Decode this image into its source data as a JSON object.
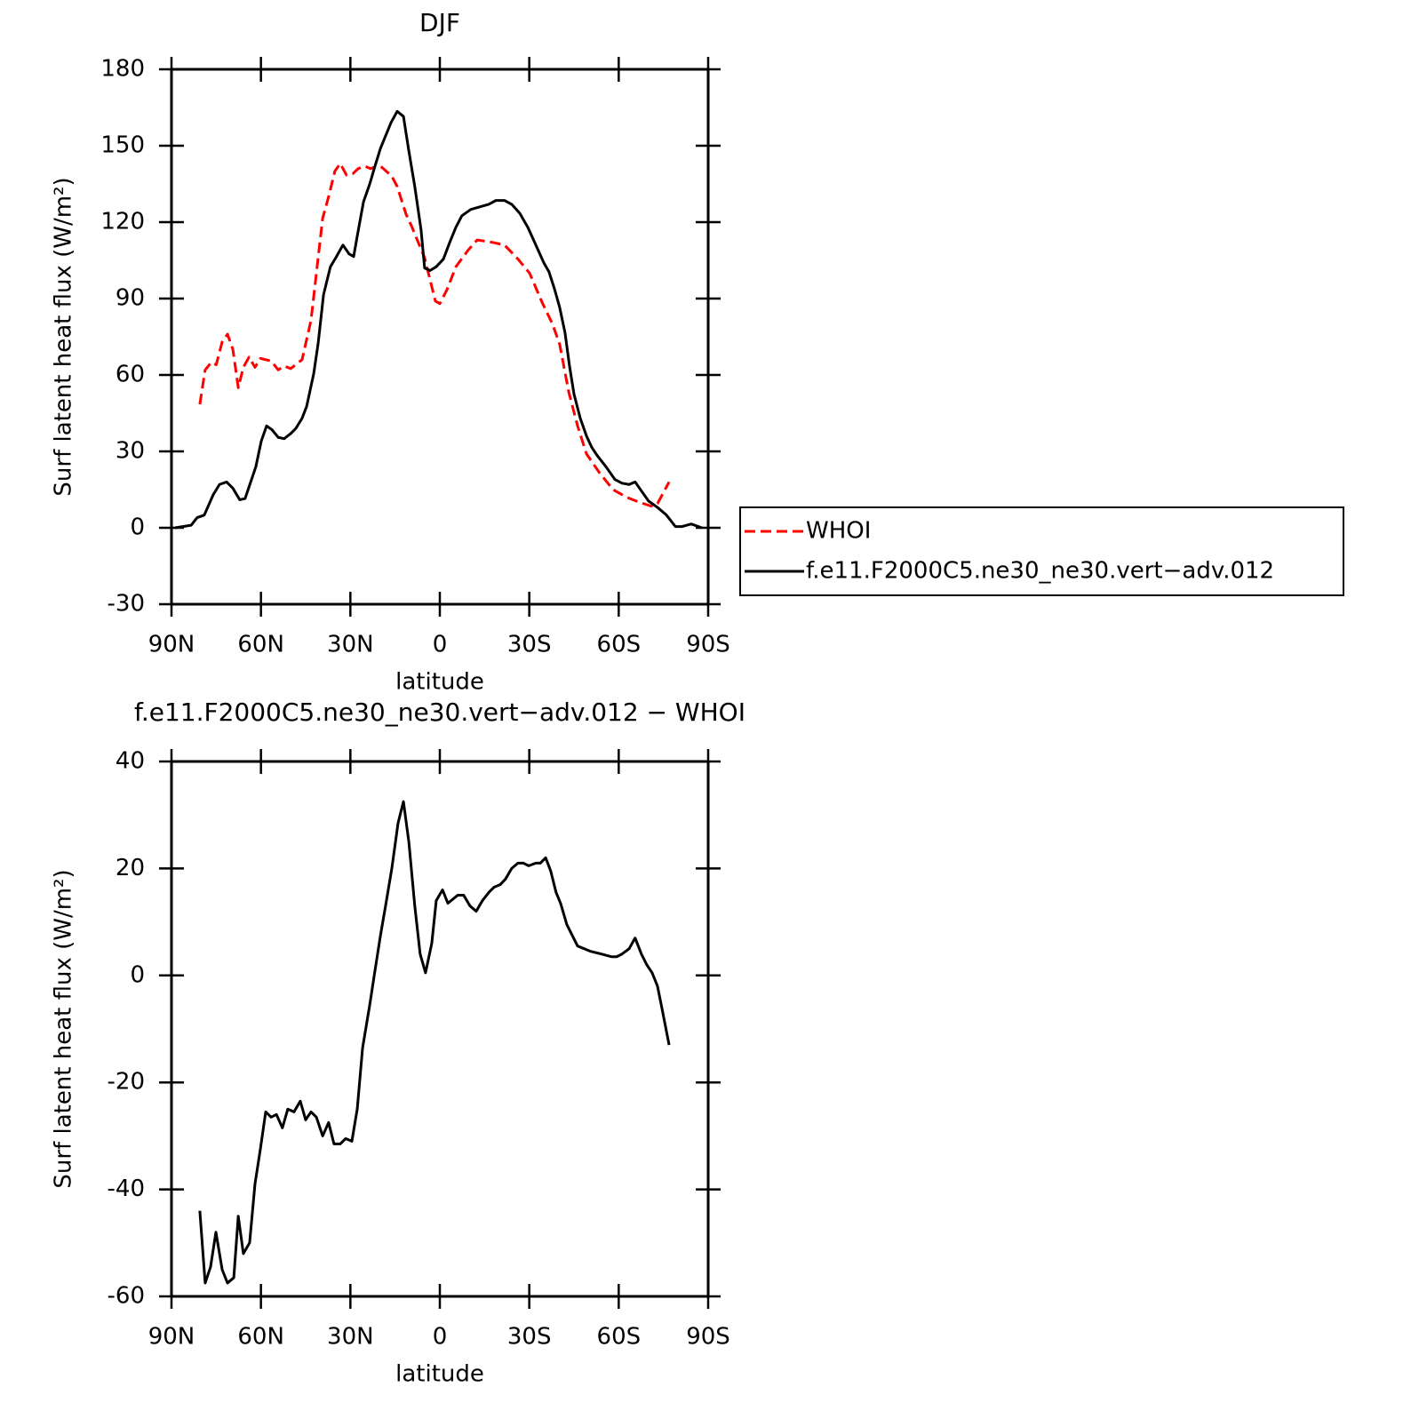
{
  "chart_data": [
    {
      "type": "line",
      "title": "DJF",
      "xlabel": "latitude",
      "ylabel": "Surf latent heat flux (W/m²)",
      "xlim": [
        90,
        -90
      ],
      "xticks": [
        {
          "value": 90,
          "label": "90N"
        },
        {
          "value": 60,
          "label": "60N"
        },
        {
          "value": 30,
          "label": "30N"
        },
        0,
        {
          "value": -30,
          "label": "30S"
        },
        {
          "value": -60,
          "label": "60S"
        },
        {
          "value": -90,
          "label": "90S"
        }
      ],
      "ylim": [
        -30,
        180
      ],
      "yticks": [
        -30,
        0,
        30,
        60,
        90,
        120,
        150,
        180
      ],
      "legend": "right",
      "series": [
        {
          "name": "WHOI",
          "color": "#ff0000",
          "line_style": "dashed",
          "x": [
            80.5,
            78.7,
            76.6,
            75,
            73,
            71.2,
            69.4,
            67.6,
            65.9,
            64,
            62,
            60.2,
            56.6,
            54.2,
            52.2,
            50,
            46.2,
            43.2,
            39.3,
            37.3,
            35.2,
            33.4,
            31.3,
            29.2,
            27.4,
            25.3,
            23.2,
            21.2,
            19.4,
            16.1,
            14.3,
            11.3,
            9.5,
            5.1,
            1.5,
            0,
            -2.4,
            -5.4,
            -9.5,
            -12.5,
            -17.9,
            -21.7,
            -26.2,
            -30.1,
            -34.3,
            -37.8,
            -40.2,
            -43.2,
            -46.2,
            -49.2,
            -53.6,
            -58.1,
            -62.6,
            -67,
            -70.9,
            -73,
            -76.9
          ],
          "values": [
            48.5,
            62,
            65,
            64,
            73,
            76,
            70,
            55,
            63,
            67,
            63,
            66.5,
            65.5,
            62,
            63.5,
            62.5,
            66,
            81.5,
            121.5,
            130,
            140,
            143,
            138.5,
            139,
            141,
            142,
            141,
            142,
            141.5,
            138,
            134,
            123,
            118.5,
            106,
            89,
            88,
            93.5,
            102.5,
            109,
            113,
            112,
            111,
            105.5,
            100,
            88.5,
            80,
            72,
            53.5,
            40,
            29,
            21.5,
            15,
            12,
            10,
            8.5,
            9.5,
            18
          ]
        },
        {
          "name": "f.e11.F2000C5.ne30_ne30.vert−adv.012",
          "color": "#000000",
          "line_style": "solid",
          "x": [
            88.8,
            83.4,
            81.4,
            79,
            76,
            73.9,
            71.5,
            69.4,
            67.1,
            65.3,
            61.7,
            59.9,
            58.1,
            56.3,
            54.2,
            52.2,
            50,
            48.3,
            46.2,
            44.7,
            42.3,
            40.8,
            39,
            36.7,
            34.9,
            32.5,
            30.4,
            28.9,
            27.7,
            25.6,
            23.5,
            22,
            19.9,
            18.5,
            16.4,
            14.3,
            12.2,
            10.4,
            8.4,
            6.3,
            5.1,
            3.3,
            1.2,
            -1.2,
            -3.3,
            -5.4,
            -7.4,
            -10.4,
            -13.4,
            -16.4,
            -18.8,
            -21.7,
            -24.1,
            -26.8,
            -29.5,
            -32.2,
            -34.9,
            -36.6,
            -38.4,
            -40.2,
            -42,
            -43.5,
            -45,
            -47.1,
            -49.2,
            -51,
            -52.7,
            -55.7,
            -58.7,
            -61.1,
            -63.5,
            -65.5,
            -67.6,
            -70,
            -73,
            -76,
            -79,
            -81.3,
            -84.3,
            -87.9
          ],
          "values": [
            0,
            1,
            4,
            5,
            13,
            17,
            18,
            15.5,
            11,
            11.5,
            24,
            34,
            40,
            38.5,
            35.5,
            35,
            37,
            39,
            43,
            47.5,
            60.5,
            72.5,
            91.5,
            102.5,
            106,
            111,
            107.5,
            106.5,
            114.5,
            128,
            135,
            141,
            149,
            153,
            159,
            163.5,
            161.5,
            148,
            134,
            117,
            102,
            101,
            102.5,
            105.5,
            112,
            118,
            122.5,
            125,
            126,
            127,
            128.5,
            128.5,
            127,
            123.5,
            118,
            111,
            104,
            100.5,
            94,
            86.5,
            76.5,
            63.5,
            52.5,
            43,
            36,
            31.5,
            28.5,
            24,
            19,
            17.5,
            17,
            18,
            14.5,
            10.5,
            8,
            5,
            0.5,
            0.5,
            1.5,
            0
          ]
        }
      ]
    },
    {
      "type": "line",
      "title": "f.e11.F2000C5.ne30_ne30.vert−adv.012 − WHOI",
      "xlabel": "latitude",
      "ylabel": "Surf latent heat flux (W/m²)",
      "xlim": [
        90,
        -90
      ],
      "xticks": [
        {
          "value": 90,
          "label": "90N"
        },
        {
          "value": 60,
          "label": "60N"
        },
        {
          "value": 30,
          "label": "30N"
        },
        0,
        {
          "value": -30,
          "label": "30S"
        },
        {
          "value": -60,
          "label": "60S"
        },
        {
          "value": -90,
          "label": "90S"
        }
      ],
      "ylim": [
        -60,
        40
      ],
      "yticks": [
        -60,
        -40,
        -20,
        0,
        20,
        40
      ],
      "series": [
        {
          "color": "#000000",
          "line_style": "solid",
          "x": [
            80.5,
            78.7,
            76.9,
            75.1,
            73,
            71.2,
            69.1,
            67.6,
            65.9,
            63.8,
            62,
            60.2,
            58.4,
            56.6,
            54.8,
            52.8,
            51,
            48.9,
            46.8,
            45,
            43.2,
            41.4,
            39.3,
            37.3,
            35.5,
            33.4,
            31.6,
            29.5,
            27.7,
            25.9,
            23.5,
            22,
            19.9,
            18.2,
            16.1,
            14,
            12.2,
            10.4,
            8.4,
            6.6,
            4.8,
            2.7,
            1.2,
            -0.9,
            -2.7,
            -6,
            -8,
            -10.1,
            -12.2,
            -14.3,
            -16.4,
            -18.2,
            -20.3,
            -22,
            -24.1,
            -26.2,
            -28,
            -29.8,
            -32.2,
            -33.7,
            -35.5,
            -37.2,
            -39,
            -40.5,
            -42.6,
            -46.2,
            -50.6,
            -54.2,
            -57.5,
            -59.3,
            -61.1,
            -63.5,
            -65.5,
            -67.6,
            -69.4,
            -71.2,
            -73,
            -74.8,
            -76.9
          ],
          "values": [
            -44,
            -57.5,
            -54.5,
            -48,
            -55,
            -57.5,
            -56.5,
            -45,
            -52,
            -50,
            -39,
            -32.5,
            -25.5,
            -26.5,
            -26,
            -28.5,
            -25,
            -25.5,
            -23.5,
            -27,
            -25.5,
            -26.5,
            -30,
            -27.5,
            -31.5,
            -31.5,
            -30.5,
            -31,
            -25,
            -13.5,
            -5.5,
            0,
            7.5,
            13,
            20,
            28.5,
            32.5,
            25,
            13,
            4,
            0.5,
            6,
            14,
            16,
            13.5,
            15,
            15,
            13,
            12,
            14,
            15.5,
            16.5,
            17,
            18,
            20,
            21,
            21,
            20.5,
            21,
            21,
            22,
            19.5,
            15.5,
            13.5,
            9.5,
            5.5,
            4.5,
            4,
            3.5,
            3.5,
            4,
            5,
            7,
            4,
            2,
            0.5,
            -2,
            -7,
            -13
          ]
        }
      ]
    }
  ]
}
